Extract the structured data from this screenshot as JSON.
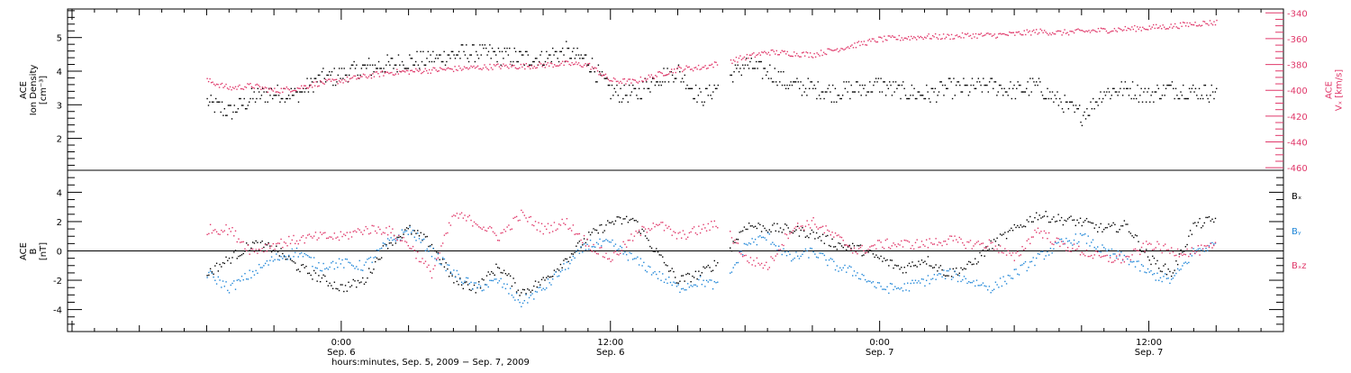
{
  "chart_data": [
    {
      "type": "scatter",
      "panel": "top",
      "ylabel": "ACE Ion Density [cm⁻³]",
      "ylabel_lines": [
        "ACE",
        "Ion Density",
        "[cm⁻³]"
      ],
      "ylim": [
        1.05,
        5.85
      ],
      "yticks": [
        2,
        3,
        4,
        5
      ],
      "y2label": "ACE Vₓ [km/s]",
      "y2label_lines": [
        "ACE",
        "Vₓ [km/s]"
      ],
      "y2lim": [
        -462,
        -337
      ],
      "y2ticks": [
        -340,
        -360,
        -380,
        -400,
        -420,
        -440,
        -460
      ],
      "series": [
        {
          "name": "Ion Density",
          "color": "#000000",
          "axis": "left",
          "x": [
            -6,
            -5,
            -4,
            -3,
            -2,
            -1,
            0,
            1,
            2,
            3,
            4,
            5,
            6,
            7,
            8,
            9,
            10,
            11,
            12,
            13,
            14,
            15,
            16,
            17,
            18,
            19,
            20,
            21,
            22,
            23,
            24,
            25,
            26,
            27,
            28,
            29,
            30,
            31,
            32,
            33,
            34,
            35,
            36,
            37,
            38,
            39
          ],
          "y": [
            3.1,
            2.8,
            3.2,
            3.4,
            3.3,
            3.8,
            3.9,
            4.1,
            4.2,
            4.3,
            4.4,
            4.5,
            4.6,
            4.5,
            4.4,
            4.4,
            4.6,
            4.3,
            3.4,
            3.3,
            3.8,
            4.0,
            3.2,
            3.7,
            4.2,
            4.0,
            3.6,
            3.5,
            3.4,
            3.5,
            3.6,
            3.4,
            3.3,
            3.5,
            3.5,
            3.6,
            3.4,
            3.6,
            3.1,
            2.7,
            3.4,
            3.5,
            3.3,
            3.5,
            3.4,
            3.4
          ]
        },
        {
          "name": "Vx",
          "color": "#e0386a",
          "axis": "right",
          "x": [
            -6,
            -5,
            -4,
            -3,
            -2,
            -1,
            0,
            1,
            2,
            3,
            4,
            5,
            6,
            7,
            8,
            9,
            10,
            11,
            12,
            13,
            14,
            15,
            16,
            17,
            18,
            19,
            20,
            21,
            22,
            23,
            24,
            25,
            26,
            27,
            28,
            29,
            30,
            31,
            32,
            33,
            34,
            35,
            36,
            37,
            38,
            39
          ],
          "y": [
            -392,
            -398,
            -396,
            -400,
            -398,
            -394,
            -392,
            -389,
            -386,
            -385,
            -384,
            -383,
            -382,
            -381,
            -381,
            -380,
            -379,
            -380,
            -392,
            -393,
            -388,
            -383,
            -382,
            -378,
            -374,
            -370,
            -371,
            -372,
            -368,
            -364,
            -360,
            -359,
            -358,
            -358,
            -357,
            -357,
            -356,
            -354,
            -355,
            -354,
            -353,
            -352,
            -351,
            -350,
            -348,
            -347
          ]
        }
      ]
    },
    {
      "type": "scatter",
      "panel": "bottom",
      "ylabel": "ACE B [nT]",
      "ylabel_lines": [
        "ACE",
        "B",
        "[nT]"
      ],
      "ylim": [
        -5.5,
        5.5
      ],
      "yticks": [
        -4,
        -2,
        0,
        2,
        4
      ],
      "zero_line": true,
      "xlabel": "hours:minutes, Sep.  5, 2009 − Sep.  7, 2009",
      "xlim": [
        -12.2,
        42
      ],
      "xticks": [
        {
          "x": 0,
          "label": "0:00",
          "date": "Sep. 6"
        },
        {
          "x": 12,
          "label": "12:00",
          "date": "Sep. 6"
        },
        {
          "x": 24,
          "label": "0:00",
          "date": "Sep. 7"
        },
        {
          "x": 36,
          "label": "12:00",
          "date": "Sep. 7"
        }
      ],
      "legend": {
        "placement": "right"
      },
      "series": [
        {
          "name": "Bₓ",
          "color": "#000000",
          "x": [
            -6,
            -5,
            -4,
            -3,
            -2,
            -1,
            0,
            1,
            2,
            3,
            4,
            5,
            6,
            7,
            8,
            9,
            10,
            11,
            12,
            13,
            14,
            15,
            16,
            17,
            18,
            19,
            20,
            21,
            22,
            23,
            24,
            25,
            26,
            27,
            28,
            29,
            30,
            31,
            32,
            33,
            34,
            35,
            36,
            37,
            38,
            39
          ],
          "y": [
            -1.5,
            -0.5,
            0.5,
            0.2,
            -1.0,
            -1.8,
            -2.5,
            -2.0,
            0.5,
            1.5,
            0.5,
            -2.0,
            -2.5,
            -1.0,
            -2.8,
            -2.0,
            -0.5,
            1.0,
            2.0,
            2.2,
            0.0,
            -2.0,
            -1.5,
            -0.5,
            1.8,
            1.6,
            1.5,
            1.2,
            0.5,
            0.2,
            -0.5,
            -1.2,
            -0.5,
            -1.5,
            -1.0,
            0.5,
            1.5,
            2.5,
            2.2,
            2.0,
            1.5,
            1.8,
            -0.5,
            -1.5,
            1.8,
            2.2
          ]
        },
        {
          "name": "Bᵧ",
          "color": "#1f86d8",
          "x": [
            -6,
            -5,
            -4,
            -3,
            -2,
            -1,
            0,
            1,
            2,
            3,
            4,
            5,
            6,
            7,
            8,
            9,
            10,
            11,
            12,
            13,
            14,
            15,
            16,
            17,
            18,
            19,
            20,
            21,
            22,
            23,
            24,
            25,
            26,
            27,
            28,
            29,
            30,
            31,
            32,
            33,
            34,
            35,
            36,
            37,
            38,
            39
          ],
          "y": [
            -1.5,
            -2.5,
            -1.5,
            -0.5,
            0.0,
            -1.0,
            -0.8,
            -1.0,
            0.5,
            1.5,
            0.0,
            -1.5,
            -2.5,
            -2.0,
            -3.5,
            -2.5,
            -1.0,
            0.5,
            0.5,
            -0.5,
            -1.5,
            -2.5,
            -2.0,
            -2.5,
            0.5,
            1.0,
            -0.5,
            0.0,
            -1.0,
            -1.5,
            -2.5,
            -2.5,
            -2.0,
            -1.5,
            -2.0,
            -2.5,
            -1.5,
            -0.5,
            0.5,
            1.0,
            0.0,
            -0.5,
            -1.5,
            -2.0,
            0.0,
            0.5
          ]
        },
        {
          "name": "Bₓz",
          "color": "#e0386a",
          "x": [
            -6,
            -5,
            -4,
            -3,
            -2,
            -1,
            0,
            1,
            2,
            3,
            4,
            5,
            6,
            7,
            8,
            9,
            10,
            11,
            12,
            13,
            14,
            15,
            16,
            17,
            18,
            19,
            20,
            21,
            22,
            23,
            24,
            25,
            26,
            27,
            28,
            29,
            30,
            31,
            32,
            33,
            34,
            35,
            36,
            37,
            38,
            39
          ],
          "y": [
            1.5,
            1.5,
            0.0,
            0.5,
            0.8,
            1.0,
            1.0,
            1.5,
            1.5,
            0.5,
            -1.5,
            2.5,
            2.0,
            1.0,
            2.5,
            1.5,
            2.0,
            0.5,
            -0.5,
            1.0,
            2.0,
            1.0,
            1.5,
            2.0,
            -0.5,
            -1.0,
            1.5,
            2.0,
            1.0,
            0.0,
            0.5,
            0.5,
            0.5,
            0.8,
            0.5,
            0.5,
            -0.5,
            1.5,
            0.5,
            0.0,
            -0.5,
            -0.5,
            0.5,
            0.0,
            0.0,
            0.3
          ]
        }
      ]
    }
  ]
}
